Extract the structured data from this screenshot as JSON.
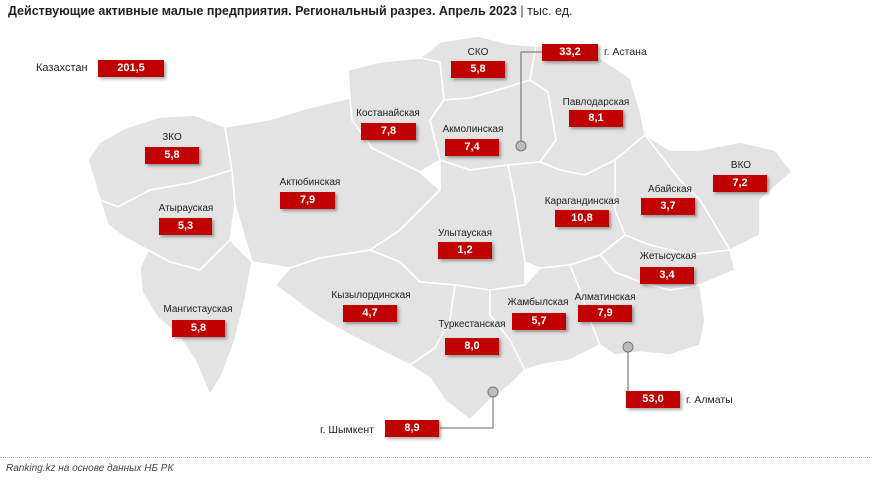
{
  "title": {
    "main": "Действующие активные малые предприятия. Региональный разрез. Апрель 2023",
    "separator": "|",
    "unit": "тыс. ед."
  },
  "footer": "Ranking.kz на основе данных НБ РК",
  "country": {
    "name": "Казахстан",
    "value": "201,5"
  },
  "colors": {
    "value_box": "#c00000",
    "map_fill": "#e3e3e3",
    "connector": "#666666"
  },
  "regions": [
    {
      "id": "sko",
      "name": "СКО",
      "value": "5,8"
    },
    {
      "id": "kostanay",
      "name": "Костанайская",
      "value": "7,8"
    },
    {
      "id": "akmola",
      "name": "Акмолинская",
      "value": "7,4"
    },
    {
      "id": "pavlodar",
      "name": "Павлодарская",
      "value": "8,1"
    },
    {
      "id": "zko",
      "name": "ЗКО",
      "value": "5,8"
    },
    {
      "id": "aktobe",
      "name": "Актюбинская",
      "value": "7,9"
    },
    {
      "id": "vko",
      "name": "ВКО",
      "value": "7,2"
    },
    {
      "id": "abay",
      "name": "Абайская",
      "value": "3,7"
    },
    {
      "id": "atyrau",
      "name": "Атырауская",
      "value": "5,3"
    },
    {
      "id": "karaganda",
      "name": "Карагандинская",
      "value": "10,8"
    },
    {
      "id": "ulytau",
      "name": "Улытауская",
      "value": "1,2"
    },
    {
      "id": "zhetysu",
      "name": "Жетысуская",
      "value": "3,4"
    },
    {
      "id": "mangystau",
      "name": "Мангистауская",
      "value": "5,8"
    },
    {
      "id": "kyzylorda",
      "name": "Кызылординская",
      "value": "4,7"
    },
    {
      "id": "zhambyl",
      "name": "Жамбылская",
      "value": "5,7"
    },
    {
      "id": "almaty_reg",
      "name": "Алматинская",
      "value": "7,9"
    },
    {
      "id": "turkestan",
      "name": "Туркестанская",
      "value": "8,0"
    }
  ],
  "cities": [
    {
      "id": "astana",
      "name": "г. Астана",
      "value": "33,2"
    },
    {
      "id": "almaty",
      "name": "г. Алматы",
      "value": "53,0"
    },
    {
      "id": "shymkent",
      "name": "г. Шымкент",
      "value": "8,9"
    }
  ]
}
